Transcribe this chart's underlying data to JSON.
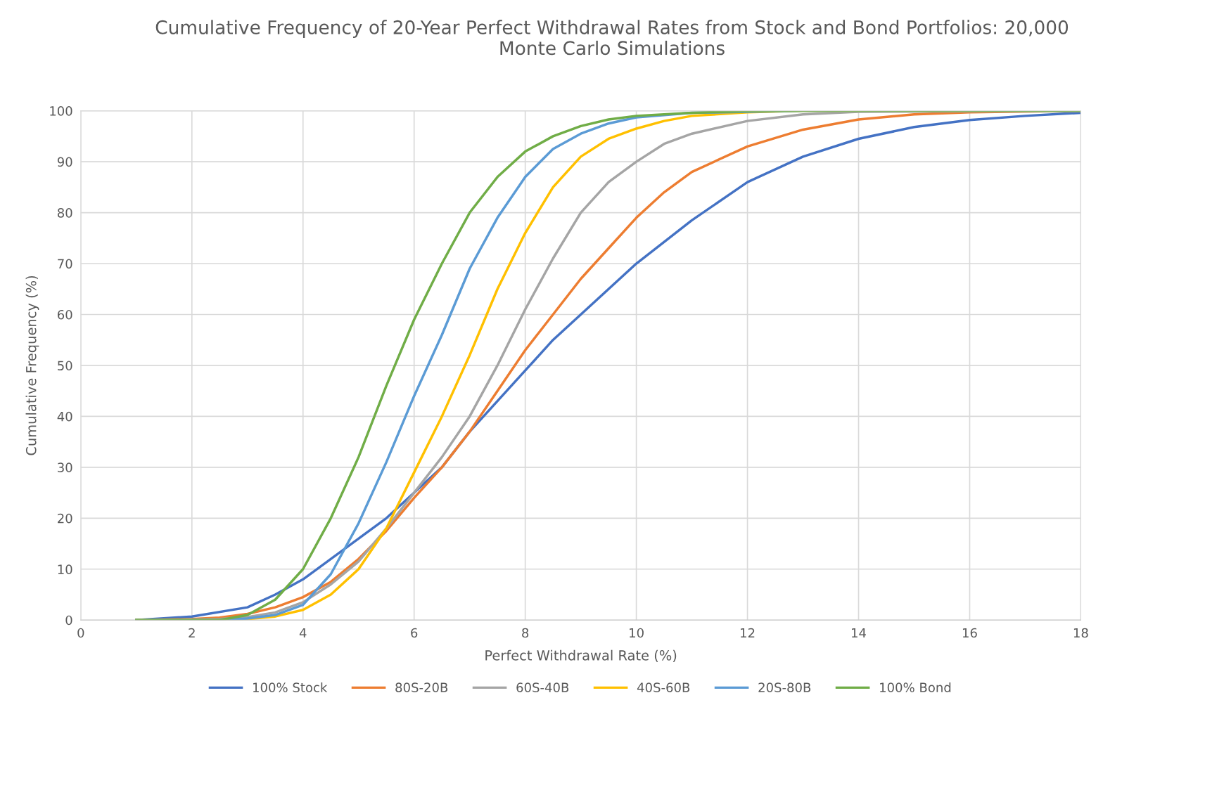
{
  "chart_data": {
    "type": "line",
    "title": "Cumulative Frequency of 20-Year Perfect Withdrawal Rates from Stock and Bond Portfolios: 20,000\nMonte Carlo Simulations",
    "xlabel": "Perfect Withdrawal Rate (%)",
    "ylabel": "Cumulative Frequency (%)",
    "xlim": [
      0,
      18
    ],
    "xticks": [
      0,
      2,
      4,
      6,
      8,
      10,
      12,
      14,
      16,
      18
    ],
    "ylim": [
      0,
      100
    ],
    "yticks": [
      0,
      10,
      20,
      30,
      40,
      50,
      60,
      70,
      80,
      90,
      100
    ],
    "grid": true,
    "legend": "bottom",
    "marker": "none",
    "line_style": "solid",
    "series": [
      {
        "name": "100% Stock",
        "color": "#4472c4",
        "x": [
          1,
          2,
          3,
          3.5,
          4,
          4.5,
          5,
          5.5,
          6,
          6.5,
          7,
          7.5,
          8,
          8.5,
          9,
          9.5,
          10,
          11,
          12,
          13,
          14,
          15,
          16,
          17,
          18
        ],
        "values": [
          0,
          0.7,
          2.5,
          5,
          8,
          12,
          16,
          20,
          25,
          30,
          37,
          43,
          49,
          55,
          60,
          65,
          70,
          78.5,
          86,
          91,
          94.5,
          96.8,
          98.2,
          99,
          99.6
        ]
      },
      {
        "name": "80S-20B",
        "color": "#ed7d31",
        "x": [
          1,
          2,
          2.5,
          3,
          3.5,
          4,
          4.5,
          5,
          5.5,
          6,
          6.5,
          7,
          7.5,
          8,
          8.5,
          9,
          9.5,
          10,
          10.5,
          11,
          12,
          13,
          14,
          15,
          16,
          18
        ],
        "values": [
          0,
          0.2,
          0.5,
          1.2,
          2.5,
          4.5,
          7.5,
          12,
          17.5,
          24,
          30,
          37,
          45,
          53,
          60,
          67,
          73,
          79,
          84,
          88,
          93,
          96.3,
          98.3,
          99.3,
          99.7,
          100
        ]
      },
      {
        "name": "60S-40B",
        "color": "#a5a5a5",
        "x": [
          1,
          2,
          2.5,
          3,
          3.5,
          4,
          4.5,
          5,
          5.5,
          6,
          6.5,
          7,
          7.5,
          8,
          8.5,
          9,
          9.5,
          10,
          10.5,
          11,
          12,
          13,
          14,
          18
        ],
        "values": [
          0,
          0.1,
          0.2,
          0.6,
          1.5,
          3.5,
          7,
          11.5,
          18,
          25,
          32,
          40,
          50,
          61,
          71,
          80,
          86,
          90,
          93.5,
          95.5,
          98,
          99.3,
          99.8,
          100
        ]
      },
      {
        "name": "40S-60B",
        "color": "#ffc000",
        "x": [
          1,
          2.5,
          3,
          3.5,
          4,
          4.5,
          5,
          5.5,
          6,
          6.5,
          7,
          7.5,
          8,
          8.5,
          9,
          9.5,
          10,
          10.5,
          11,
          12,
          13,
          18
        ],
        "values": [
          0,
          0,
          0.2,
          0.7,
          2,
          5,
          10,
          18,
          29,
          40,
          52,
          65,
          76,
          85,
          91,
          94.5,
          96.5,
          98,
          99,
          99.7,
          100,
          100
        ]
      },
      {
        "name": "20S-80B",
        "color": "#5b9bd5",
        "x": [
          1,
          2.5,
          3,
          3.5,
          4,
          4.5,
          5,
          5.5,
          6,
          6.5,
          7,
          7.5,
          8,
          8.5,
          9,
          9.5,
          10,
          11,
          13,
          18
        ],
        "values": [
          0,
          0,
          0.3,
          1,
          3,
          9,
          19,
          31,
          44,
          56,
          69,
          79,
          87,
          92.5,
          95.5,
          97.5,
          98.7,
          99.6,
          100,
          100
        ]
      },
      {
        "name": "100% Bond",
        "color": "#70ad47",
        "x": [
          1,
          2.5,
          3,
          3.5,
          4,
          4.5,
          5,
          5.5,
          6,
          6.5,
          7,
          7.5,
          8,
          8.5,
          9,
          9.5,
          10,
          11,
          12,
          13,
          18
        ],
        "values": [
          0,
          0,
          1,
          4,
          10,
          20,
          32,
          46,
          59,
          70,
          80,
          87,
          92,
          95,
          97,
          98.3,
          99,
          99.6,
          99.9,
          100,
          100
        ]
      }
    ]
  }
}
